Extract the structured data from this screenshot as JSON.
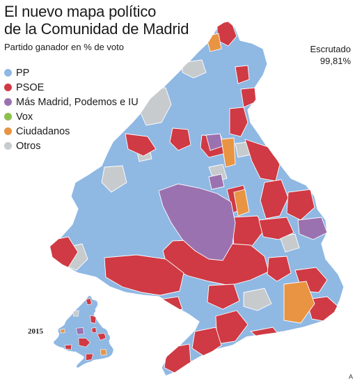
{
  "header": {
    "title_line1": "El nuevo mapa político",
    "title_line2": "de la Comunidad de Madrid",
    "subtitle": "Partido ganador en % de voto"
  },
  "counted": {
    "label": "Escrutado",
    "value": "99,81%"
  },
  "legend": {
    "items": [
      {
        "label": "PP",
        "color": "#8fb8e3"
      },
      {
        "label": "PSOE",
        "color": "#cf3a44"
      },
      {
        "label": "Más Madrid, Podemos e IU",
        "color": "#9b72b0"
      },
      {
        "label": "Vox",
        "color": "#8cc04b"
      },
      {
        "label": "Ciudadanos",
        "color": "#e89443"
      },
      {
        "label": "Otros",
        "color": "#c8cbce"
      }
    ]
  },
  "inset": {
    "label": "2015"
  },
  "credit": {
    "text": "A"
  }
}
